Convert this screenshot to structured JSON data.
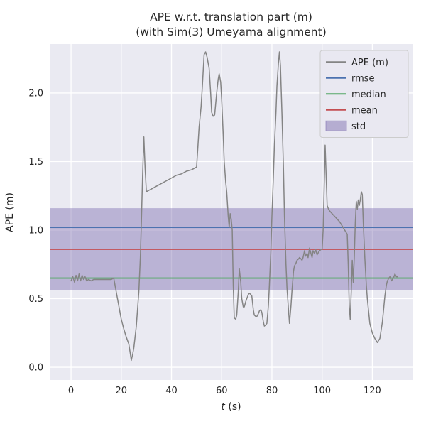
{
  "figure": {
    "title_line1": "APE w.r.t. translation part (m)",
    "title_line2": "(with Sim(3) Umeyama alignment)",
    "xlabel_var": "t",
    "xlabel_unit": " (s)",
    "ylabel": "APE (m)"
  },
  "colors": {
    "axes_bg": "#eaeaf2",
    "grid": "#ffffff",
    "text": "#262626",
    "ape_line": "#848484",
    "rmse": "#4c72b0",
    "median": "#55a868",
    "mean": "#c44e52",
    "std": "#8172b2",
    "legend_bg": "#e9e8f1",
    "legend_border": "#cccccc"
  },
  "chart_data": {
    "type": "line",
    "title": "APE w.r.t. translation part (m) (with Sim(3) Umeyama alignment)",
    "xlabel": "t (s)",
    "ylabel": "APE (m)",
    "xlim": [
      -8.5,
      136
    ],
    "ylim": [
      -0.093,
      2.357
    ],
    "xticks": [
      0,
      20,
      40,
      60,
      80,
      100,
      120
    ],
    "xtick_labels": [
      "0",
      "20",
      "40",
      "60",
      "80",
      "100",
      "120"
    ],
    "yticks": [
      0.0,
      0.5,
      1.0,
      1.5,
      2.0
    ],
    "ytick_labels": [
      "0.0",
      "0.5",
      "1.0",
      "1.5",
      "2.0"
    ],
    "grid": true,
    "stats": {
      "rmse": 1.02,
      "median": 0.65,
      "mean": 0.86,
      "std": 0.3
    },
    "legend": {
      "position": "upper right",
      "entries": [
        {
          "label": "APE (m)",
          "sample": "line",
          "color": "#848484"
        },
        {
          "label": "rmse",
          "sample": "line",
          "color": "#4c72b0"
        },
        {
          "label": "median",
          "sample": "line",
          "color": "#55a868"
        },
        {
          "label": "mean",
          "sample": "line",
          "color": "#c44e52"
        },
        {
          "label": "std",
          "sample": "patch",
          "color": "#8172b2"
        }
      ]
    },
    "series": [
      {
        "name": "std",
        "type": "hband",
        "color": "#8172b2",
        "alpha": 0.45,
        "min": 0.56,
        "max": 1.16
      },
      {
        "name": "rmse",
        "type": "hline",
        "color": "#4c72b0",
        "value": 1.02
      },
      {
        "name": "median",
        "type": "hline",
        "color": "#55a868",
        "value": 0.65
      },
      {
        "name": "mean",
        "type": "hline",
        "color": "#c44e52",
        "value": 0.86
      },
      {
        "name": "APE (m)",
        "type": "line",
        "color": "#848484",
        "points": [
          [
            0,
            0.63
          ],
          [
            0.7,
            0.66
          ],
          [
            1.4,
            0.62
          ],
          [
            2,
            0.67
          ],
          [
            2.6,
            0.63
          ],
          [
            3.2,
            0.68
          ],
          [
            3.8,
            0.63
          ],
          [
            4.4,
            0.67
          ],
          [
            5,
            0.64
          ],
          [
            5.6,
            0.66
          ],
          [
            6.2,
            0.63
          ],
          [
            7,
            0.64
          ],
          [
            8,
            0.63
          ],
          [
            9,
            0.64
          ],
          [
            10,
            0.64
          ],
          [
            12,
            0.64
          ],
          [
            14,
            0.64
          ],
          [
            16,
            0.64
          ],
          [
            17,
            0.65
          ],
          [
            18,
            0.55
          ],
          [
            19,
            0.45
          ],
          [
            20,
            0.35
          ],
          [
            21,
            0.28
          ],
          [
            22,
            0.22
          ],
          [
            23,
            0.17
          ],
          [
            23.6,
            0.1
          ],
          [
            24,
            0.05
          ],
          [
            24.6,
            0.1
          ],
          [
            25,
            0.14
          ],
          [
            26,
            0.3
          ],
          [
            27,
            0.55
          ],
          [
            27.6,
            0.8
          ],
          [
            28,
            1.05
          ],
          [
            28.5,
            1.4
          ],
          [
            29,
            1.68
          ],
          [
            29.5,
            1.45
          ],
          [
            30,
            1.28
          ],
          [
            31,
            1.29
          ],
          [
            32,
            1.3
          ],
          [
            34,
            1.32
          ],
          [
            36,
            1.34
          ],
          [
            38,
            1.36
          ],
          [
            40,
            1.38
          ],
          [
            42,
            1.4
          ],
          [
            44,
            1.41
          ],
          [
            46,
            1.43
          ],
          [
            48,
            1.44
          ],
          [
            50,
            1.46
          ],
          [
            50.5,
            1.6
          ],
          [
            51,
            1.75
          ],
          [
            51.8,
            1.9
          ],
          [
            52.3,
            2.05
          ],
          [
            53,
            2.28
          ],
          [
            53.6,
            2.3
          ],
          [
            54.2,
            2.26
          ],
          [
            55,
            2.18
          ],
          [
            55.6,
            2.0
          ],
          [
            56,
            1.86
          ],
          [
            56.6,
            1.83
          ],
          [
            57.2,
            1.84
          ],
          [
            58,
            2.0
          ],
          [
            58.6,
            2.1
          ],
          [
            59,
            2.14
          ],
          [
            59.6,
            2.08
          ],
          [
            60,
            1.95
          ],
          [
            60.6,
            1.7
          ],
          [
            61,
            1.5
          ],
          [
            61.6,
            1.35
          ],
          [
            62,
            1.28
          ],
          [
            62.6,
            1.1
          ],
          [
            63,
            1.02
          ],
          [
            63.4,
            1.12
          ],
          [
            63.8,
            1.08
          ],
          [
            64.2,
            1.0
          ],
          [
            64.6,
            0.6
          ],
          [
            65,
            0.36
          ],
          [
            65.6,
            0.35
          ],
          [
            66,
            0.38
          ],
          [
            66.6,
            0.55
          ],
          [
            67,
            0.72
          ],
          [
            67.6,
            0.62
          ],
          [
            68,
            0.5
          ],
          [
            68.6,
            0.44
          ],
          [
            69,
            0.44
          ],
          [
            69.6,
            0.48
          ],
          [
            70,
            0.5
          ],
          [
            70.6,
            0.53
          ],
          [
            71,
            0.54
          ],
          [
            71.6,
            0.53
          ],
          [
            72,
            0.52
          ],
          [
            72.6,
            0.42
          ],
          [
            73,
            0.38
          ],
          [
            73.6,
            0.37
          ],
          [
            74,
            0.37
          ],
          [
            74.6,
            0.39
          ],
          [
            75,
            0.41
          ],
          [
            75.6,
            0.42
          ],
          [
            76,
            0.4
          ],
          [
            76.6,
            0.33
          ],
          [
            77,
            0.3
          ],
          [
            77.6,
            0.31
          ],
          [
            78,
            0.32
          ],
          [
            78.6,
            0.45
          ],
          [
            79,
            0.6
          ],
          [
            79.6,
            0.85
          ],
          [
            80,
            1.1
          ],
          [
            80.6,
            1.4
          ],
          [
            81,
            1.62
          ],
          [
            81.6,
            1.85
          ],
          [
            82,
            2.05
          ],
          [
            82.6,
            2.22
          ],
          [
            83,
            2.3
          ],
          [
            83.4,
            2.2
          ],
          [
            84,
            1.85
          ],
          [
            84.6,
            1.45
          ],
          [
            85,
            1.1
          ],
          [
            85.6,
            0.75
          ],
          [
            86,
            0.58
          ],
          [
            86.6,
            0.42
          ],
          [
            87,
            0.32
          ],
          [
            87.6,
            0.45
          ],
          [
            88,
            0.56
          ],
          [
            88.6,
            0.7
          ],
          [
            89,
            0.74
          ],
          [
            89.6,
            0.76
          ],
          [
            90,
            0.78
          ],
          [
            90.6,
            0.79
          ],
          [
            91,
            0.8
          ],
          [
            91.6,
            0.79
          ],
          [
            92,
            0.78
          ],
          [
            92.4,
            0.8
          ],
          [
            93,
            0.85
          ],
          [
            93.4,
            0.81
          ],
          [
            94,
            0.83
          ],
          [
            94.4,
            0.8
          ],
          [
            95,
            0.87
          ],
          [
            95.4,
            0.84
          ],
          [
            96,
            0.8
          ],
          [
            96.4,
            0.85
          ],
          [
            97,
            0.83
          ],
          [
            97.4,
            0.86
          ],
          [
            98,
            0.82
          ],
          [
            98.6,
            0.84
          ],
          [
            99,
            0.85
          ],
          [
            99.6,
            0.86
          ],
          [
            100,
            0.86
          ],
          [
            100.4,
            1.0
          ],
          [
            100.8,
            1.3
          ],
          [
            101.2,
            1.62
          ],
          [
            101.6,
            1.4
          ],
          [
            102,
            1.18
          ],
          [
            102.6,
            1.15
          ],
          [
            103,
            1.14
          ],
          [
            104,
            1.12
          ],
          [
            105,
            1.1
          ],
          [
            106,
            1.08
          ],
          [
            107,
            1.06
          ],
          [
            108,
            1.03
          ],
          [
            109,
            1.0
          ],
          [
            110,
            0.97
          ],
          [
            110.4,
            0.75
          ],
          [
            110.8,
            0.45
          ],
          [
            111.2,
            0.35
          ],
          [
            111.6,
            0.55
          ],
          [
            112,
            0.78
          ],
          [
            112.4,
            0.62
          ],
          [
            112.8,
            0.8
          ],
          [
            113.2,
            1.05
          ],
          [
            113.6,
            1.21
          ],
          [
            114,
            1.15
          ],
          [
            114.4,
            1.22
          ],
          [
            114.8,
            1.18
          ],
          [
            115.2,
            1.22
          ],
          [
            115.6,
            1.28
          ],
          [
            116,
            1.26
          ],
          [
            116.4,
            1.05
          ],
          [
            117,
            0.8
          ],
          [
            117.6,
            0.6
          ],
          [
            118,
            0.5
          ],
          [
            119,
            0.32
          ],
          [
            120,
            0.25
          ],
          [
            121,
            0.21
          ],
          [
            122,
            0.18
          ],
          [
            123,
            0.21
          ],
          [
            124,
            0.33
          ],
          [
            125,
            0.52
          ],
          [
            125.6,
            0.6
          ],
          [
            126,
            0.63
          ],
          [
            126.6,
            0.65
          ],
          [
            127,
            0.66
          ],
          [
            127.6,
            0.63
          ],
          [
            128,
            0.64
          ],
          [
            128.6,
            0.66
          ],
          [
            129,
            0.68
          ],
          [
            129.6,
            0.66
          ],
          [
            130,
            0.66
          ]
        ]
      }
    ]
  }
}
